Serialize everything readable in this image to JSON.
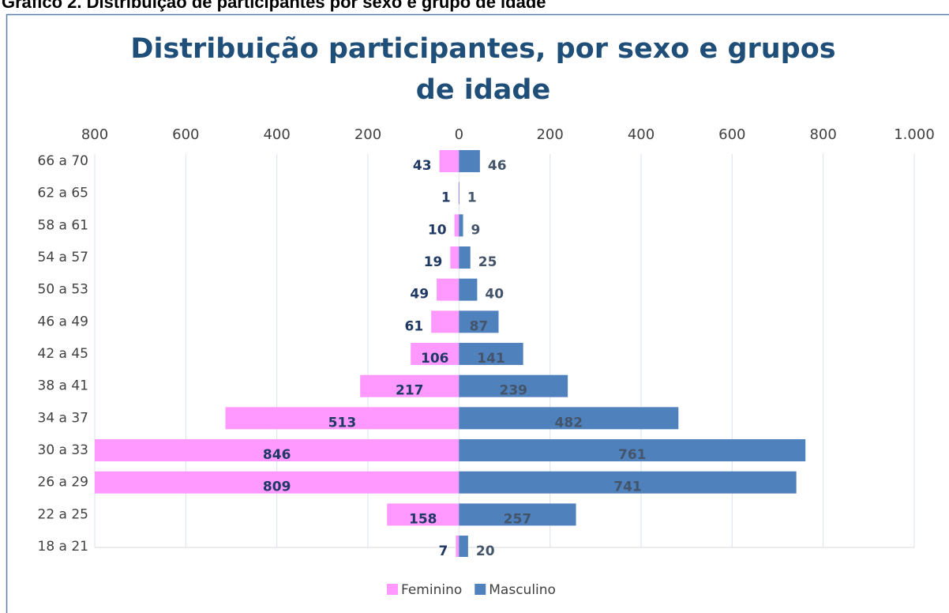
{
  "header": "Gráfico 2. Distribuição de participantes por sexo e grupo de idade",
  "chart_data": {
    "type": "bar",
    "orientation": "horizontal",
    "title": "Distribuição participantes, por sexo e grupos de idade",
    "categories": [
      "66 a 70",
      "62 a 65",
      "58 a 61",
      "54 a 57",
      "50 a 53",
      "46 a 49",
      "42 a 45",
      "38 a 41",
      "34 a 37",
      "30 a 33",
      "26 a 29",
      "22 a 25",
      "18 a 21"
    ],
    "series": [
      {
        "name": "Feminino",
        "color": "#ff99ff",
        "values": [
          -43,
          -1,
          -10,
          -19,
          -49,
          -61,
          -106,
          -217,
          -513,
          -846,
          -809,
          -158,
          -7
        ],
        "value_labels": [
          "43",
          "1",
          "10",
          "19",
          "49",
          "61",
          "106",
          "217",
          "513",
          "846",
          "809",
          "158",
          "7"
        ]
      },
      {
        "name": "Masculino",
        "color": "#4f81bd",
        "values": [
          46,
          1,
          9,
          25,
          40,
          87,
          141,
          239,
          482,
          761,
          741,
          257,
          20
        ]
      }
    ],
    "xlim": [
      -800,
      1000
    ],
    "xticks": [
      {
        "value": -800,
        "label": "800"
      },
      {
        "value": -600,
        "label": "600"
      },
      {
        "value": -400,
        "label": "400"
      },
      {
        "value": -200,
        "label": "200"
      },
      0,
      200,
      400,
      600,
      800,
      {
        "value": 1000,
        "label": "1.000"
      }
    ],
    "grid": true,
    "legend": "bottom"
  }
}
